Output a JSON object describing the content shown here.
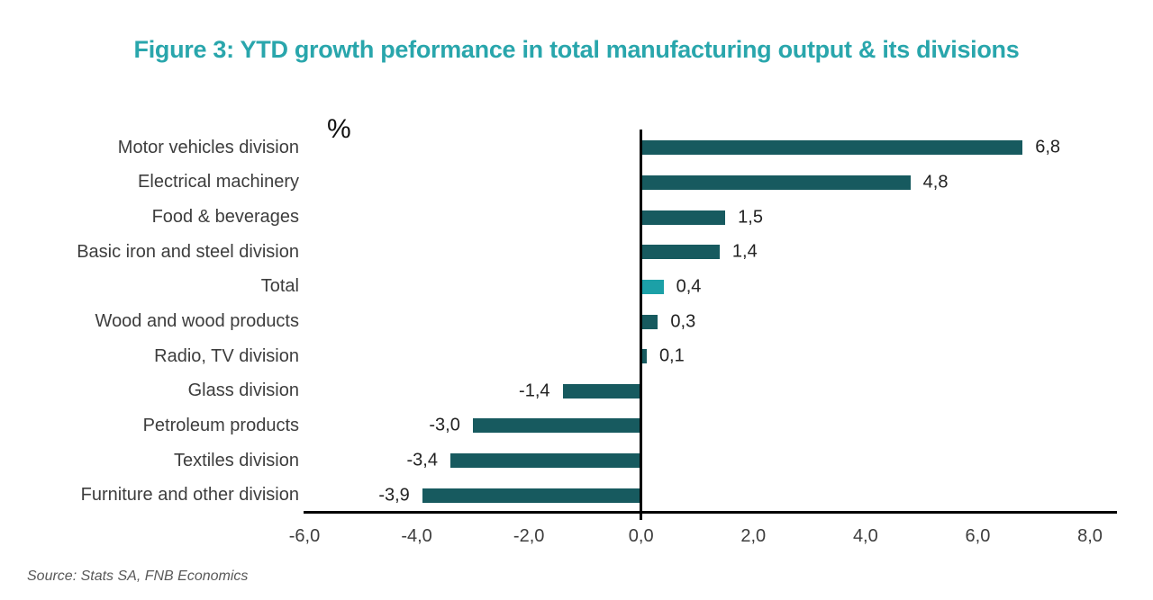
{
  "header": {
    "title": "Figure 3: YTD growth peformance in total manufacturing output & its divisions"
  },
  "chart_data": {
    "type": "bar",
    "orientation": "horizontal",
    "title": "Figure 3: YTD growth peformance in total manufacturing output & its divisions",
    "unit_label": "%",
    "categories": [
      "Motor vehicles division",
      "Electrical machinery",
      "Food & beverages",
      "Basic iron and steel division",
      "Total",
      "Wood and wood products",
      "Radio, TV division",
      "Glass division",
      "Petroleum products",
      "Textiles division",
      "Furniture and other division"
    ],
    "values": [
      6.8,
      4.8,
      1.5,
      1.4,
      0.4,
      0.3,
      0.1,
      -1.4,
      -3.0,
      -3.4,
      -3.9
    ],
    "value_labels": [
      "6,8",
      "4,8",
      "1,5",
      "1,4",
      "0,4",
      "0,3",
      "0,1",
      "-1,4",
      "-3,0",
      "-3,4",
      "-3,9"
    ],
    "highlight_category": "Total",
    "colors": {
      "bar": "#175A5F",
      "highlight_bar": "#1CA0A7",
      "title": "#29A6AC",
      "axis": "#000000"
    },
    "xlim": [
      -6,
      8
    ],
    "x_tick_values": [
      -6,
      -4,
      -2,
      0,
      2,
      4,
      6,
      8
    ],
    "x_tick_labels": [
      "-6,0",
      "-4,0",
      "-2,0",
      "0,0",
      "2,0",
      "4,0",
      "6,0",
      "8,0"
    ],
    "grid": false,
    "legend": false
  },
  "footer": {
    "source": "Source: Stats SA, FNB Economics"
  }
}
